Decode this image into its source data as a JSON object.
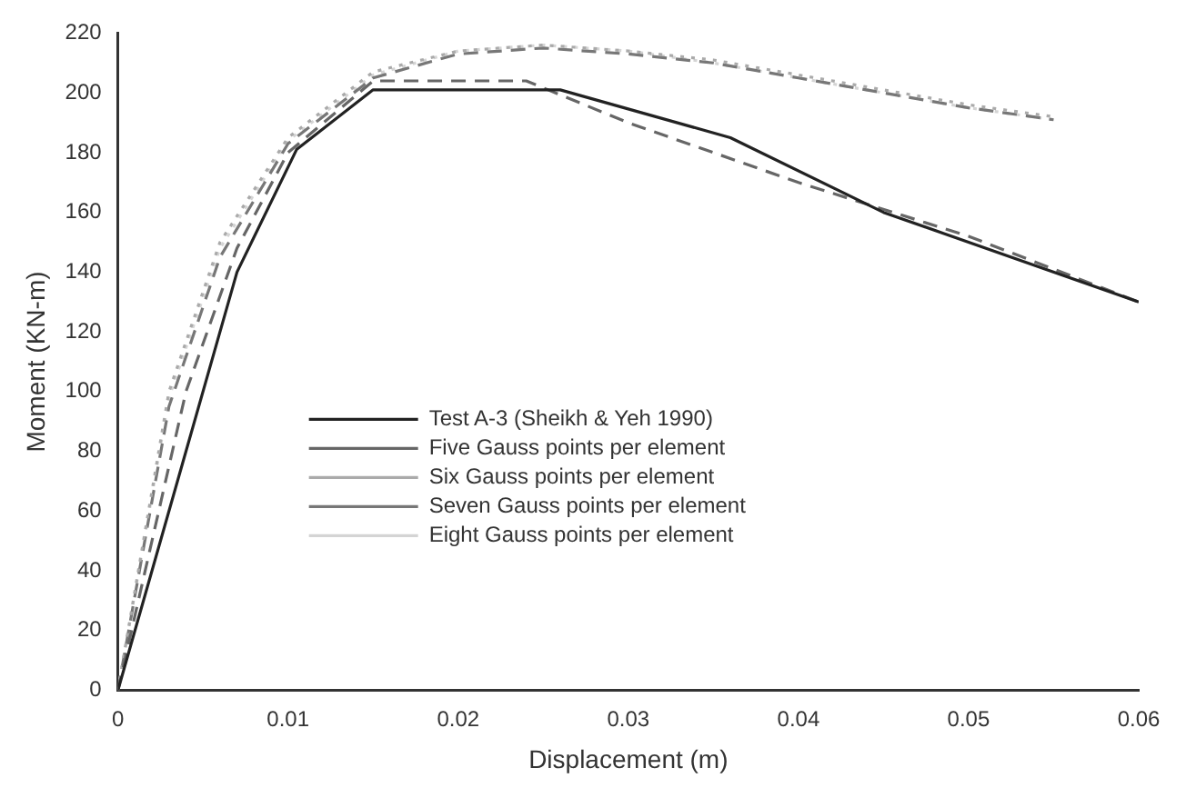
{
  "chart_data": {
    "type": "line",
    "xlabel": "Displacement (m)",
    "ylabel": "Moment (KN-m)",
    "xlim": [
      0,
      0.06
    ],
    "xticks": [
      0,
      0.01,
      0.02,
      0.03,
      0.04,
      0.05,
      {
        "value": 0.06,
        "label": "0.06"
      }
    ],
    "ylim": [
      0,
      220
    ],
    "yticks": [
      0,
      20,
      40,
      60,
      80,
      100,
      120,
      140,
      160,
      180,
      200,
      220
    ],
    "grid": false,
    "legend": "center",
    "marker": "none",
    "series": [
      {
        "name": "Test A-3 (Sheikh & Yeh 1990)",
        "color": "#222222",
        "line_style": "solid",
        "x": [
          0,
          0.007,
          0.0105,
          0.015,
          0.026,
          0.036,
          0.045,
          0.06
        ],
        "values": [
          0,
          140,
          181,
          201,
          201,
          185,
          160,
          130
        ]
      },
      {
        "name": "Five Gauss points per element",
        "color": "#666666",
        "line_style": "dashed",
        "x": [
          0,
          0.004,
          0.007,
          0.01,
          0.015,
          0.024,
          0.03,
          0.035,
          0.04,
          0.05,
          0.06
        ],
        "values": [
          0,
          100,
          148,
          180,
          204,
          204,
          190,
          180,
          170,
          152,
          130
        ]
      },
      {
        "name": "Six Gauss points per element",
        "color": "#aaaaaa",
        "line_style": "dotted",
        "x": [
          0,
          0.003,
          0.006,
          0.01,
          0.015,
          0.02,
          0.025,
          0.03,
          0.035,
          0.04,
          0.045,
          0.05,
          0.055
        ],
        "values": [
          0,
          100,
          150,
          185,
          207,
          214,
          216,
          214,
          211,
          206,
          201,
          196,
          192
        ]
      },
      {
        "name": "Seven Gauss points per element",
        "color": "#777777",
        "line_style": "dashed",
        "x": [
          0,
          0.003,
          0.006,
          0.01,
          0.015,
          0.02,
          0.025,
          0.03,
          0.035,
          0.04,
          0.045,
          0.05,
          0.055
        ],
        "values": [
          0,
          95,
          145,
          183,
          205,
          213,
          215,
          213,
          210,
          205,
          200,
          195,
          191
        ]
      },
      {
        "name": "Eight Gauss points per element",
        "color": "#d4d4d4",
        "line_style": "dotted",
        "x": [
          0,
          0.003,
          0.006,
          0.01,
          0.015,
          0.02,
          0.025,
          0.03,
          0.035,
          0.04,
          0.045,
          0.05,
          0.055
        ],
        "values": [
          0,
          98,
          148,
          184,
          206,
          214,
          216,
          214,
          210,
          205,
          200,
          195,
          191
        ]
      }
    ]
  }
}
